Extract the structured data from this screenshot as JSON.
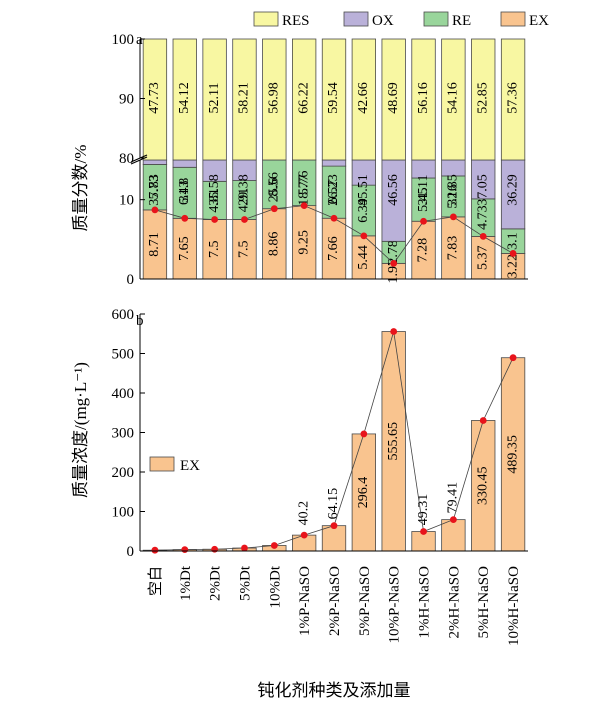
{
  "chart_data": [
    {
      "panel": "a",
      "type": "bar",
      "stacked": true,
      "ylabel": "质量分数/%",
      "axis_break": [
        15,
        80
      ],
      "yticks": [
        0,
        10,
        80,
        90,
        100
      ],
      "ylim": [
        0,
        100
      ],
      "legend": {
        "position": "top",
        "entries": [
          "RES",
          "OX",
          "RE",
          "EX"
        ]
      },
      "categories": [
        "空白",
        "1%Dt",
        "2%Dt",
        "5%Dt",
        "10%Dt",
        "1%P-NaSO",
        "2%P-NaSO",
        "5%P-NaSO",
        "10%P-NaSO",
        "1%H-NaSO",
        "2%H-NaSO",
        "5%H-NaSO",
        "10%H-NaSO"
      ],
      "series": [
        {
          "name": "EX",
          "color": "#f9c48f",
          "values": [
            8.71,
            7.65,
            7.5,
            7.5,
            8.86,
            9.25,
            7.66,
            5.44,
            1.97,
            7.28,
            7.83,
            5.37,
            3.22
          ],
          "labels": [
            "8.71",
            "7.65",
            "7.5",
            "7.5",
            "8.86",
            "9.25",
            "7.66",
            "5.44",
            "1.97",
            "7.28",
            "7.83",
            "5.37",
            "3.22"
          ]
        },
        {
          "name": "RE",
          "color": "#99d59b",
          "values": [
            5.73,
            6.43,
            4.81,
            4.91,
            8.56,
            5.76,
            6.57,
            6.39,
            2.78,
            5.45,
            5.16,
            4.73,
            3.1
          ],
          "labels": [
            "5.73",
            "6.43",
            "4.81",
            "4.91",
            "8.56",
            "5.76",
            "6.57",
            "6.39",
            "2.78",
            "5.45",
            "5.16",
            "4.73",
            "3.1"
          ]
        },
        {
          "name": "OX",
          "color": "#bab1d9",
          "values": [
            37.83,
            31.8,
            35.58,
            29.38,
            25.6,
            18.77,
            26.23,
            45.51,
            46.56,
            31.11,
            32.85,
            37.05,
            36.29
          ],
          "labels": [
            "37.83",
            "31.8",
            "35.58",
            "29.38",
            "25.6",
            "18.77",
            "26.23",
            "45.51",
            "46.56",
            "31.11",
            "32.85",
            "37.05",
            "36.29"
          ]
        },
        {
          "name": "RES",
          "color": "#f8f7a2",
          "values": [
            47.73,
            54.12,
            52.11,
            58.21,
            56.98,
            66.22,
            59.54,
            42.66,
            48.69,
            56.16,
            54.16,
            52.85,
            57.36
          ],
          "labels": [
            "47.73",
            "54.12",
            "52.11",
            "58.21",
            "56.98",
            "66.22",
            "59.54",
            "42.66",
            "48.69",
            "56.16",
            "54.16",
            "52.85",
            "57.36"
          ]
        }
      ]
    },
    {
      "panel": "b",
      "type": "bar",
      "overlay": "line",
      "ylabel": "质量浓度/(mg·L⁻¹)",
      "xlabel": "钝化剂种类及添加量",
      "ylim": [
        0,
        600
      ],
      "yticks": [
        0,
        100,
        200,
        300,
        400,
        500,
        600
      ],
      "legend": {
        "position": "left",
        "entries": [
          "EX"
        ]
      },
      "categories": [
        "空白",
        "1%Dt",
        "2%Dt",
        "5%Dt",
        "10%Dt",
        "1%P-NaSO",
        "2%P-NaSO",
        "5%P-NaSO",
        "10%P-NaSO",
        "1%H-NaSO",
        "2%H-NaSO",
        "5%H-NaSO",
        "10%H-NaSO"
      ],
      "series": [
        {
          "name": "EX",
          "color": "#f9c48f",
          "values": [
            2,
            3.5,
            4.5,
            7.5,
            14,
            40.2,
            64.15,
            296.4,
            555.65,
            49.31,
            79.41,
            330.45,
            489.35
          ],
          "labels": [
            "",
            "",
            "",
            "",
            "",
            "40.2",
            "64.15",
            "296.4",
            "555.65",
            "49.31",
            "79.41",
            "330.45",
            "489.35"
          ]
        }
      ]
    }
  ]
}
